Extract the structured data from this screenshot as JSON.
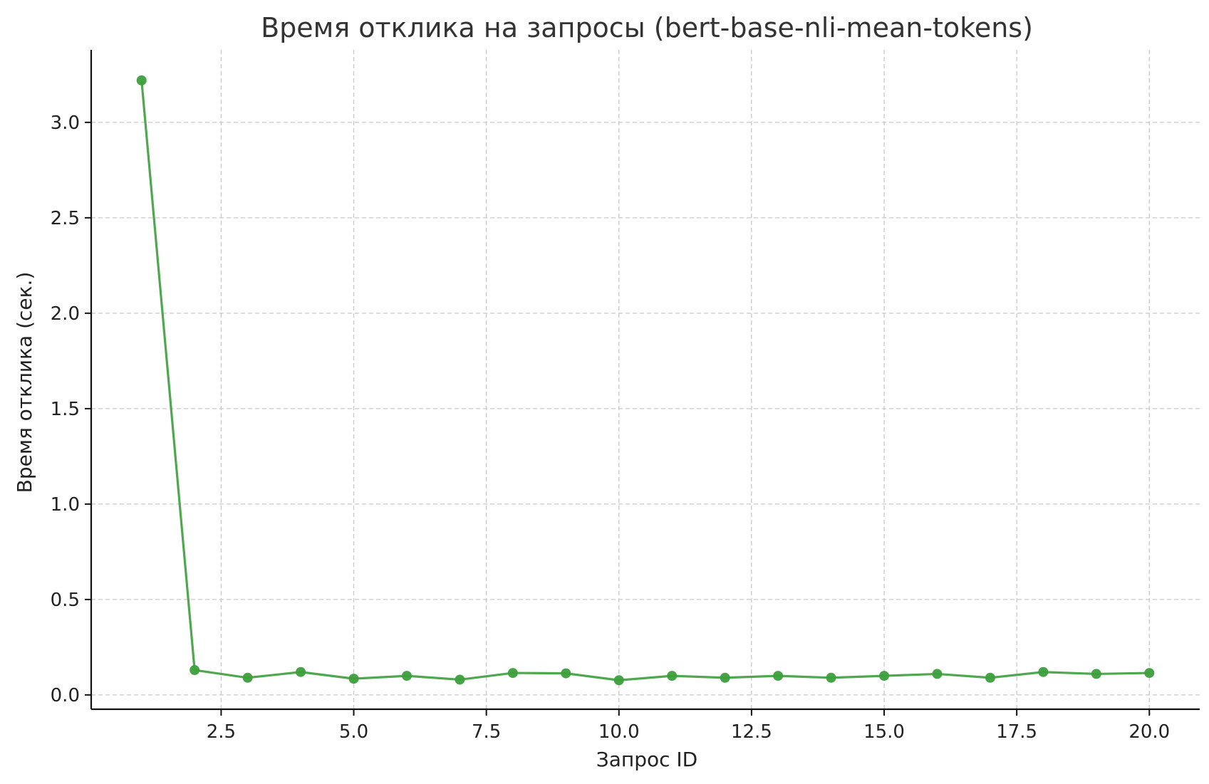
{
  "chart_data": {
    "type": "line",
    "title": "Время отклика на запросы (bert-base-nli-mean-tokens)",
    "xlabel": "Запрос ID",
    "ylabel": "Время отклика (сек.)",
    "x": [
      1,
      2,
      3,
      4,
      5,
      6,
      7,
      8,
      9,
      10,
      11,
      12,
      13,
      14,
      15,
      16,
      17,
      18,
      19,
      20
    ],
    "series": [
      {
        "values": [
          3.22,
          0.13,
          0.09,
          0.12,
          0.085,
          0.1,
          0.08,
          0.115,
          0.113,
          0.077,
          0.1,
          0.09,
          0.1,
          0.09,
          0.1,
          0.11,
          0.09,
          0.12,
          0.11,
          0.115
        ]
      }
    ],
    "xlim": [
      0.05,
      20.95
    ],
    "ylim": [
      -0.075,
      3.38
    ],
    "xticks": [
      2.5,
      5.0,
      7.5,
      10.0,
      12.5,
      15.0,
      17.5,
      20.0
    ],
    "yticks": [
      0.0,
      0.5,
      1.0,
      1.5,
      2.0,
      2.5,
      3.0
    ],
    "grid": true,
    "line_color": "#3c9f3c",
    "marker": "circle"
  }
}
